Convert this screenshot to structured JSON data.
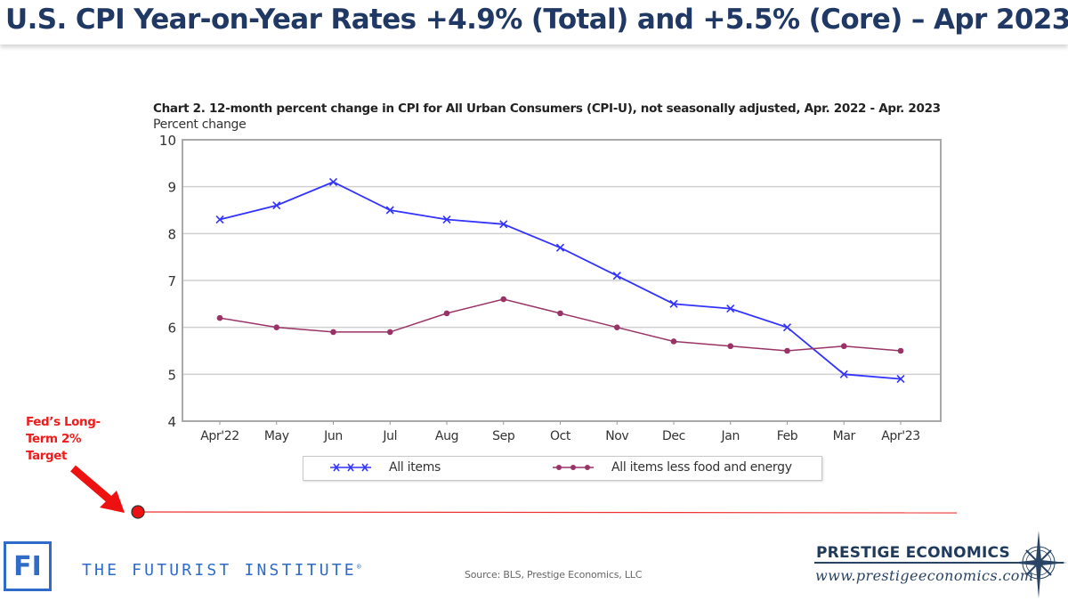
{
  "slide": {
    "title": "U.S. CPI Year-on-Year Rates +4.9% (Total) and +5.5% (Core) – Apr 2023",
    "annotation": {
      "text_lines": [
        "Fed’s Long-",
        "Term 2%",
        "Target"
      ],
      "color": "#ee1c1c",
      "target_value": 2
    },
    "source": "Source: BLS, Prestige Economics, LLC",
    "footer_left": {
      "logo_text": "FI",
      "name": "THE FUTURIST INSTITUTE",
      "registered_mark": "®"
    },
    "footer_right": {
      "name": "PRESTIGE ECONOMICS",
      "url": "www.prestigeeconomics.com",
      "icon": "compass-star-icon"
    }
  },
  "chart_data": {
    "type": "line",
    "title": "Chart 2. 12-month percent change in CPI for All Urban Consumers (CPI-U), not seasonally adjusted, Apr. 2022 - Apr. 2023",
    "xlabel": "",
    "ylabel": "Percent change",
    "ylim": [
      4,
      10
    ],
    "yticks": [
      4,
      5,
      6,
      7,
      8,
      9,
      10
    ],
    "grid": true,
    "legend_position": "bottom",
    "categories": [
      "Apr'22",
      "May",
      "Jun",
      "Jul",
      "Aug",
      "Sep",
      "Oct",
      "Nov",
      "Dec",
      "Jan",
      "Feb",
      "Mar",
      "Apr'23"
    ],
    "series": [
      {
        "name": "All items",
        "color": "#3333ff",
        "marker": "x",
        "values": [
          8.3,
          8.6,
          9.1,
          8.5,
          8.3,
          8.2,
          7.7,
          7.1,
          6.5,
          6.4,
          6.0,
          5.0,
          4.9
        ]
      },
      {
        "name": "All items less food and energy",
        "color": "#993366",
        "marker": "circle",
        "values": [
          6.2,
          6.0,
          5.9,
          5.9,
          6.3,
          6.6,
          6.3,
          6.0,
          5.7,
          5.6,
          5.5,
          5.6,
          5.5
        ]
      }
    ]
  }
}
